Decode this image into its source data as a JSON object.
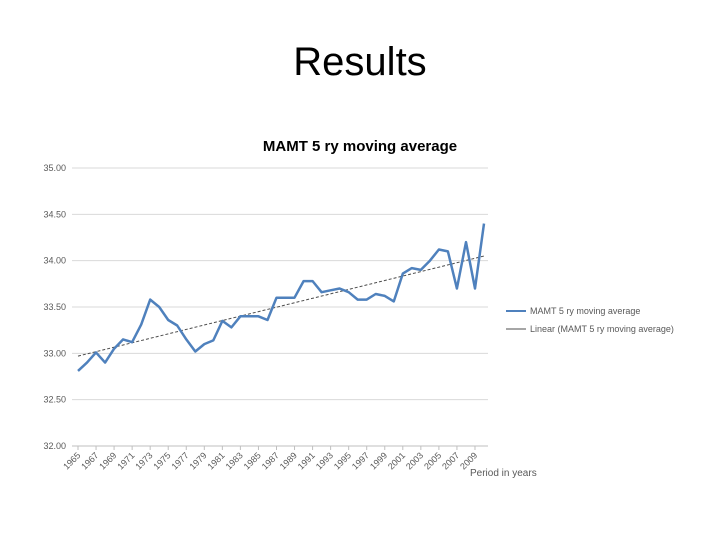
{
  "slide": {
    "title": "Results"
  },
  "chart_data": {
    "type": "line",
    "title": "MAMT 5 ry moving average",
    "xlabel": "Period in years",
    "ylabel": "",
    "ylim": [
      32.0,
      35.0
    ],
    "yticks": [
      "32.00",
      "32.50",
      "33.00",
      "33.50",
      "34.00",
      "34.50",
      "35.00"
    ],
    "xticks": [
      "1965",
      "1967",
      "1969",
      "1971",
      "1973",
      "1975",
      "1977",
      "1979",
      "1981",
      "1983",
      "1985",
      "1987",
      "1989",
      "1991",
      "1993",
      "1995",
      "1997",
      "1999",
      "2001",
      "2003",
      "2005",
      "2007",
      "2009"
    ],
    "grid": true,
    "legend_position": "right",
    "x": [
      1965,
      1966,
      1967,
      1968,
      1969,
      1970,
      1971,
      1972,
      1973,
      1974,
      1975,
      1976,
      1977,
      1978,
      1979,
      1980,
      1981,
      1982,
      1983,
      1984,
      1985,
      1986,
      1987,
      1988,
      1989,
      1990,
      1991,
      1992,
      1993,
      1994,
      1995,
      1996,
      1997,
      1998,
      1999,
      2000,
      2001,
      2002,
      2003,
      2004,
      2005,
      2006,
      2007,
      2008,
      2009,
      2010
    ],
    "series": [
      {
        "name": "MAMT 5 ry moving average",
        "color": "#4f81bd",
        "values": [
          32.81,
          32.9,
          33.01,
          32.9,
          33.05,
          33.15,
          33.12,
          33.31,
          33.58,
          33.5,
          33.36,
          33.3,
          33.15,
          33.02,
          33.1,
          33.14,
          33.35,
          33.28,
          33.4,
          33.4,
          33.4,
          33.36,
          33.6,
          33.6,
          33.6,
          33.78,
          33.78,
          33.66,
          33.68,
          33.7,
          33.66,
          33.58,
          33.58,
          33.64,
          33.62,
          33.56,
          33.86,
          33.92,
          33.9,
          34.0,
          34.12,
          34.1,
          33.7,
          34.2,
          33.7,
          34.4
        ]
      }
    ],
    "trendline": {
      "name": "Linear (MAMT 5 ry moving average)",
      "color": "#4d4d4d",
      "style": "dashed",
      "start": [
        1965,
        32.97
      ],
      "end": [
        2010,
        34.05
      ]
    }
  }
}
